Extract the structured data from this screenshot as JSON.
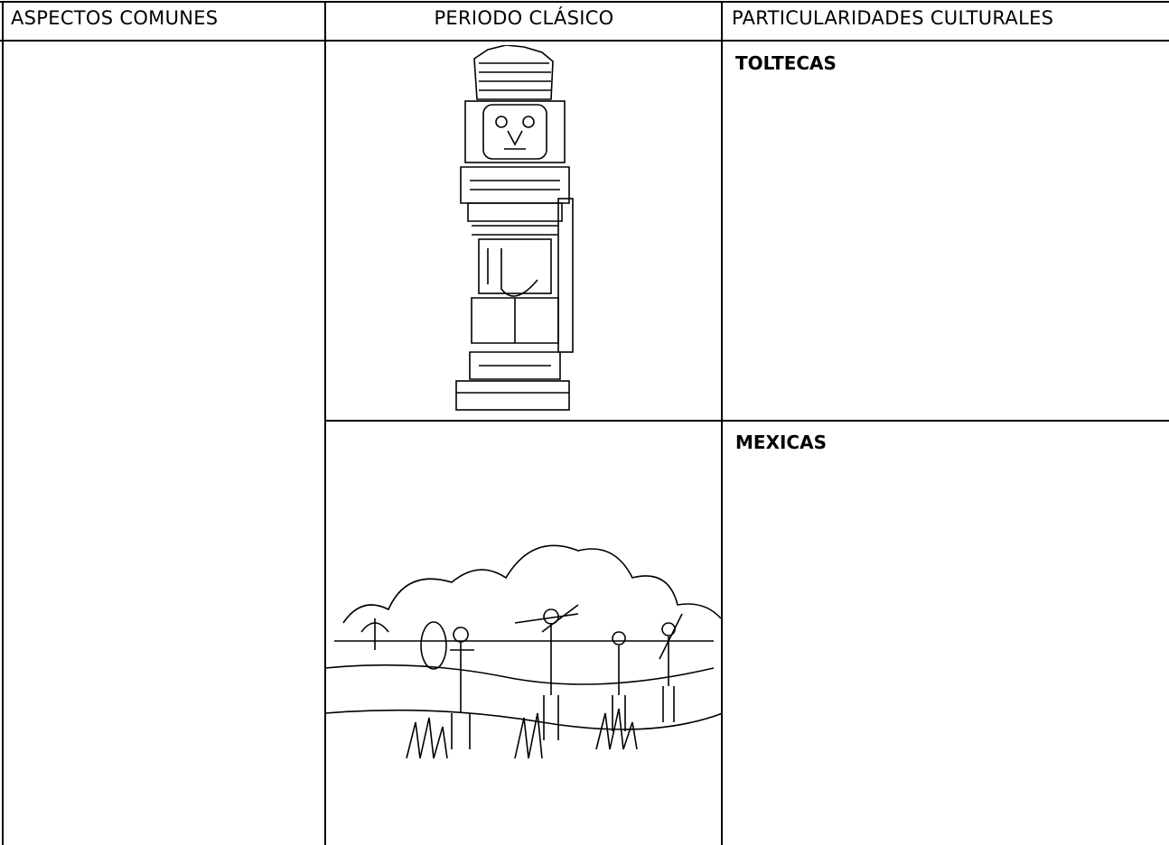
{
  "table": {
    "header": [
      "ASPECTOS COMUNES",
      "PERIODO CLÁSICO",
      "PARTICULARIDADES CULTURALES"
    ],
    "sections": [
      "TOLTECAS",
      "MEXICAS"
    ]
  }
}
